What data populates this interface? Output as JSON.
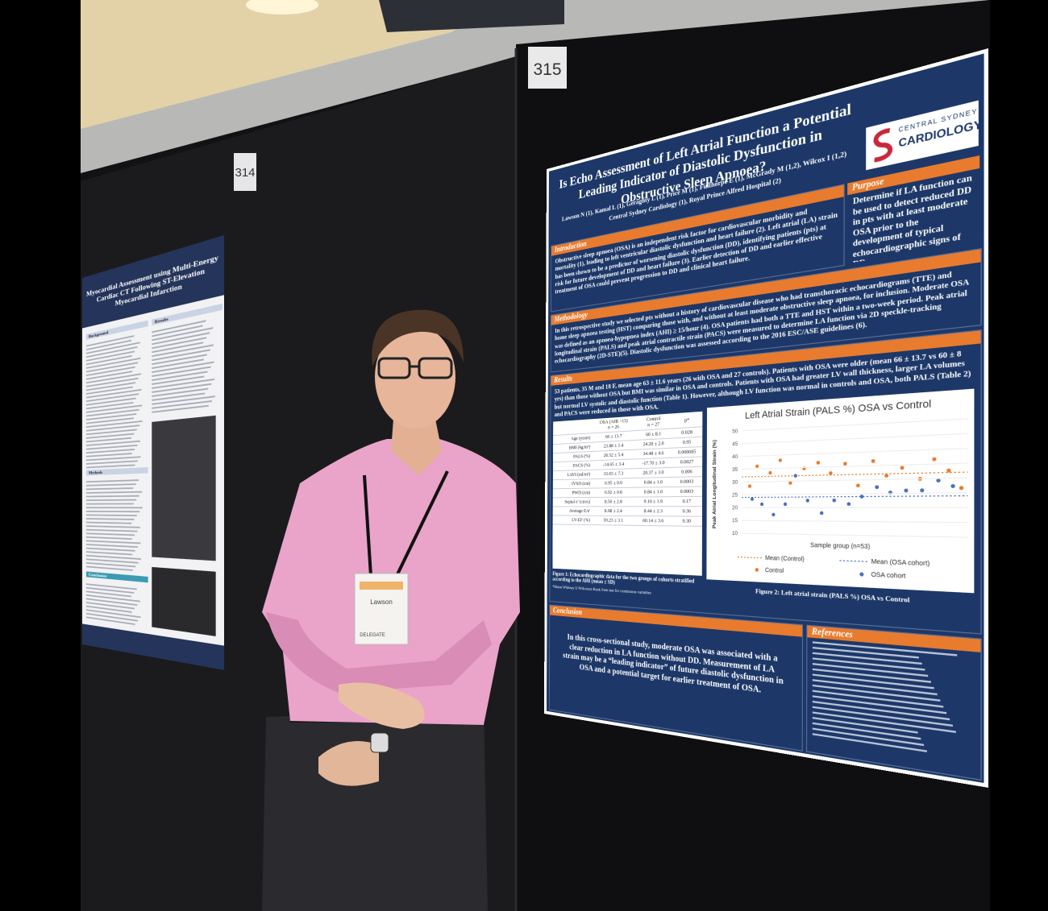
{
  "boards": {
    "left": "314",
    "right": "315"
  },
  "left_poster": {
    "title": "Myocardial Assessment using Multi-Energy Cardiac CT Following ST-Elevation Myocardial Infarction",
    "sections": [
      "Background",
      "Results",
      "Methods",
      "Conclusion"
    ]
  },
  "poster": {
    "title": "Is Echo Assessment of Left Atrial Function a Potential Leading Indicator of Diastolic Dysfunction in Obstructive Sleep Apnoea?",
    "authors": "Lawson N (1), Kamal L (1), Geraghty L (1), Price M (1), Fulthorpe E (1), McGrady M (1,2), Wilcox I (1,2)",
    "affiliations": "Central Sydney Cardiology (1), Royal Prince Alfred Hospital (2)",
    "logo": {
      "top": "CENTRAL SYDNEY",
      "bottom": "CARDIOLOGY"
    },
    "introduction": {
      "heading": "Introduction",
      "text": "Obstructive sleep apnoea (OSA) is an independent risk factor for cardiovascular morbidity and mortality (1), leading to left ventricular diastolic dysfunction and heart failure (2). Left atrial (LA) strain has been shown to be a predictor of worsening diastolic dysfunction (DD), identifying patients (pts) at risk for future development of DD and heart failure (3). Earlier detection of DD and earlier effective treatment of OSA could prevent progression to DD and clinical heart failure."
    },
    "purpose": {
      "heading": "Purpose",
      "text": "Determine if LA function can be used to detect reduced DD in pts with at least moderate OSA prior to the development of typical echocardiographic signs of DD."
    },
    "methodology": {
      "heading": "Methodology",
      "text": "In this retrospective study we selected pts without a history of cardiovascular disease who had transthoracic echocardiograms (TTE) and home sleep apnoea testing (HST) comparing those with, and without at least moderate obstructive sleep apnoea, for inclusion. Moderate OSA was defined as an apnoea-hypopnea index (AHI) ≥ 15/hour (4). OSA patients had both a TTE and HST within a two-week period. Peak atrial longitudinal strain (PALS) and peak atrial contractile strain (PACS) were measured to determine LA function via 2D speckle-tracking echocardiography (2D-STE)(5). Diastolic dysfunction was assessed according to the 2016 ESC/ASE guidelines (6)."
    },
    "results": {
      "heading": "Results",
      "text": "53 patients, 35 M and 18 F, mean age 63 ± 11.6 years (26 with OSA and 27 controls). Patients with OSA were older (mean 66 ± 13.7 vs 60 ± 8 yrs) than those without OSA but BMI was similar in OSA and controls. Patients with OSA had greater LV wall thickness, larger LA volumes but normal LV systolic and diastolic function (Table 1). However, although LV function was normal in controls and OSA, both PALS (Table 2) and PACS were reduced in those with OSA."
    },
    "table": {
      "header": [
        "OSA (AHI >15)",
        "n = 26",
        "Control",
        "n = 27",
        "p*"
      ],
      "rows": [
        [
          "Age (years)",
          "66 ± 13.7",
          "60 ± 8.1",
          "0.028"
        ],
        [
          "BMI (kg/m²)",
          "23.88 ± 1.4",
          "24.20 ± 2.0",
          "0.95"
        ],
        [
          "PALS (%)",
          "26.52 ± 5.4",
          "34.48 ± 4.6",
          "0.000005"
        ],
        [
          "PACS (%)",
          "-14.65 ± 3.4",
          "-17.70 ± 3.0",
          "0.0027"
        ],
        [
          "LAVI (ml/m²)",
          "33.65 ± 7.3",
          "20.37 ± 3.0",
          "0.006"
        ],
        [
          "IVSD (cm)",
          "0.95 ± 0.9",
          "0.84 ± 1.0",
          "0.0003"
        ],
        [
          "PWD (cm)",
          "0.92 ± 0.8",
          "0.84 ± 1.0",
          "0.0003"
        ],
        [
          "Septal e' (cm/s)",
          "8.50 ± 2.8",
          "9.10 ± 1.9",
          "0.17"
        ],
        [
          "Average E/e'",
          "8.98 ± 2.4",
          "8.44 ± 2.3",
          "0.36"
        ],
        [
          "LV-EF (%)",
          "59.23 ± 3.1",
          "60.14 ± 3.6",
          "0.30"
        ]
      ]
    },
    "figure1_caption": "Figure 1: Echocardiographic data for the two groups of cohorts stratified according to the AHI (mean ± SD)",
    "figure1_note": "*Mann Whitney U/Wilcoxon Rank Sum test for continuous variables",
    "chart": {
      "title": "Left Atrial Strain (PALS %) OSA vs Control",
      "y_label": "Peak Atrial Longitudinal Strain (%)",
      "x_label": "Sample group (n=53)",
      "yticks": [
        10,
        15,
        20,
        25,
        30,
        35,
        40,
        45,
        50
      ],
      "legend": [
        "Mean (Control)",
        "Mean (OSA cohort)",
        "Control",
        "OSA cohort"
      ]
    },
    "figure2_caption": "Figure 2: Left atrial strain (PALS %) OSA vs Control",
    "conclusion": {
      "heading": "Conclusion",
      "text": "In this cross-sectional study, moderate OSA was associated with a clear reduction in LA function without DD. Measurement of LA strain may be a “leading indicator” of future diastolic dysfunction in OSA and a potential target for earlier treatment of OSA."
    },
    "references": {
      "heading": "References"
    }
  },
  "badge": {
    "name": "Lawson",
    "role": "DELEGATE"
  }
}
